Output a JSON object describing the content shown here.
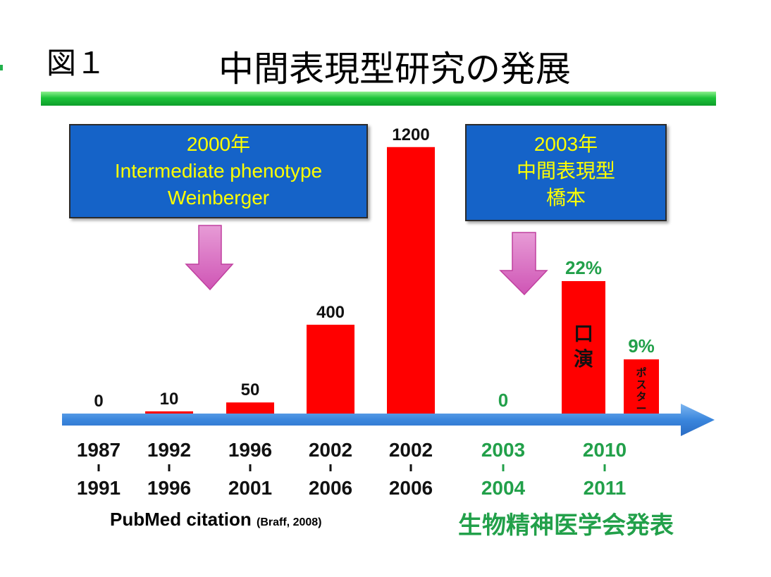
{
  "header": {
    "figure_label": "図１",
    "title": "中間表現型研究の発展"
  },
  "callouts": [
    {
      "lines": [
        "2000年",
        "Intermediate phenotype",
        "Weinberger"
      ]
    },
    {
      "lines": [
        "2003年",
        "中間表現型",
        "橋本"
      ]
    }
  ],
  "colors": {
    "bar": "#ff0000",
    "callout_bg": "#1563c8",
    "callout_text": "#ffff00",
    "society_green": "#22a04a",
    "axis_arrow": "#3a86dd",
    "down_arrow": "#d966c0"
  },
  "chart_data": [
    {
      "type": "bar",
      "series_name": "PubMed citation",
      "categories": [
        [
          "1987",
          "1991"
        ],
        [
          "1992",
          "1996"
        ],
        [
          "1996",
          "2001"
        ],
        [
          "2002",
          "2006"
        ],
        [
          "2002",
          "2006"
        ]
      ],
      "values": [
        0,
        10,
        50,
        400,
        1200
      ],
      "value_labels": [
        "0",
        "10",
        "50",
        "400",
        "1200"
      ]
    },
    {
      "type": "bar",
      "series_name": "生物精神医学会発表",
      "categories": [
        [
          "2003",
          "2004"
        ],
        [
          "2010",
          "2011"
        ]
      ],
      "bars": [
        {
          "value": 0,
          "label": "0",
          "note": ""
        },
        {
          "value": 22,
          "label": "22%",
          "note": "口演"
        },
        {
          "value": 9,
          "label": "9%",
          "note": "ポスター"
        }
      ]
    }
  ],
  "footer": {
    "source_main": "PubMed citation",
    "source_ref": "(Braff, 2008)",
    "society_label": "生物精神医学会発表"
  }
}
